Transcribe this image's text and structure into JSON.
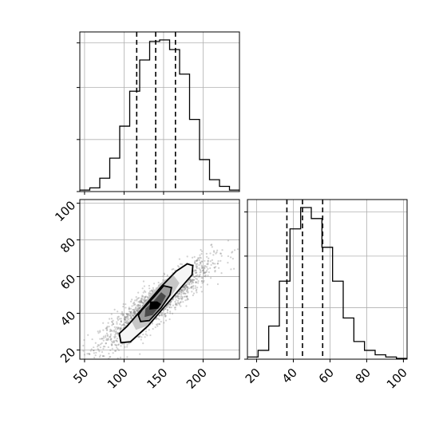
{
  "chart_data": {
    "type": "corner",
    "parameters": [
      {
        "ticks": [
          50,
          100,
          150,
          200
        ],
        "range": [
          44,
          246
        ],
        "quantiles": [
          116,
          140,
          165
        ],
        "hist_values": [
          0.2,
          0.5,
          1.8,
          4.5,
          8.8,
          13.5,
          17.7,
          20.2,
          20.4,
          19.1,
          15.8,
          9.7,
          4.3,
          1.6,
          0.7,
          0.2
        ],
        "hist_start": 44,
        "hist_bin_width": 12.625
      },
      {
        "ticks": [
          20,
          40,
          60,
          80,
          100
        ],
        "range": [
          15,
          102
        ],
        "quantiles": [
          36.5,
          45,
          56
        ],
        "hist_values": [
          0.3,
          1.2,
          4.5,
          10.6,
          17.7,
          20.6,
          19.1,
          15.2,
          10.6,
          5.6,
          2.4,
          1.2,
          0.6,
          0.3,
          0.1
        ],
        "hist_start": 15,
        "hist_bin_width": 5.8
      }
    ],
    "scatter": {
      "center": [
        140,
        45
      ],
      "spread": [
        35,
        12
      ],
      "correlation": 0.9,
      "points": 1800
    },
    "contour_levels": [
      {
        "shade": "#f5f5f5",
        "outline": true,
        "path": [
          [
            96,
            24
          ],
          [
            108,
            24.5
          ],
          [
            130,
            33
          ],
          [
            152,
            44
          ],
          [
            172,
            54
          ],
          [
            186,
            61
          ],
          [
            187,
            66
          ],
          [
            180,
            67
          ],
          [
            166,
            63
          ],
          [
            148,
            55
          ],
          [
            128,
            45
          ],
          [
            104,
            33
          ],
          [
            94,
            29
          ]
        ]
      },
      {
        "shade": "#c6c6c6",
        "outline": false,
        "path": [
          [
            115,
            31
          ],
          [
            128,
            33
          ],
          [
            146,
            42
          ],
          [
            164,
            52
          ],
          [
            170,
            56.5
          ],
          [
            163,
            60.5
          ],
          [
            150,
            58
          ],
          [
            133,
            50
          ],
          [
            117,
            40
          ],
          [
            109,
            36
          ]
        ]
      },
      {
        "shade": "#9a9a9a",
        "outline": true,
        "path": [
          [
            121,
            35.5
          ],
          [
            132,
            36
          ],
          [
            147,
            43
          ],
          [
            158,
            50
          ],
          [
            160,
            54
          ],
          [
            150,
            55
          ],
          [
            137,
            48.5
          ],
          [
            123,
            42
          ],
          [
            118,
            39
          ]
        ]
      },
      {
        "shade": "#4a4a4a",
        "outline": false,
        "path": [
          [
            126,
            38
          ],
          [
            136,
            39
          ],
          [
            148,
            45.5
          ],
          [
            153,
            49.5
          ],
          [
            147,
            51.5
          ],
          [
            136,
            46
          ],
          [
            127,
            42.5
          ]
        ]
      },
      {
        "shade": "#000000",
        "outline": false,
        "path": [
          [
            132,
            42
          ],
          [
            143,
            42.5
          ],
          [
            147,
            45
          ],
          [
            142,
            46.5
          ],
          [
            133,
            46.5
          ]
        ]
      }
    ]
  }
}
